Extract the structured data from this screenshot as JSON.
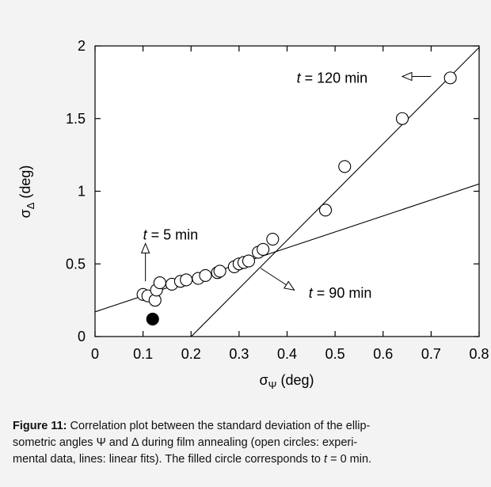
{
  "chart_data": {
    "type": "scatter",
    "xlim": [
      0,
      0.8
    ],
    "ylim": [
      0,
      2
    ],
    "xticks": [
      "0",
      "0.1",
      "0.2",
      "0.3",
      "0.4",
      "0.5",
      "0.6",
      "0.7",
      "0.8"
    ],
    "yticks": [
      "0",
      "0.5",
      "1",
      "1.5",
      "2"
    ],
    "xlabel": {
      "symbol": "σ",
      "sub": "Ψ",
      "unit": " (deg)"
    },
    "ylabel": {
      "symbol": "σ",
      "sub": "Δ",
      "unit": " (deg)"
    },
    "grid": false,
    "series": [
      {
        "marker": "open-circle",
        "points": [
          [
            0.1,
            0.29
          ],
          [
            0.11,
            0.28
          ],
          [
            0.125,
            0.25
          ],
          [
            0.128,
            0.32
          ],
          [
            0.135,
            0.37
          ],
          [
            0.16,
            0.36
          ],
          [
            0.178,
            0.38
          ],
          [
            0.19,
            0.39
          ],
          [
            0.215,
            0.4
          ],
          [
            0.23,
            0.42
          ],
          [
            0.255,
            0.44
          ],
          [
            0.26,
            0.45
          ],
          [
            0.29,
            0.48
          ],
          [
            0.3,
            0.5
          ],
          [
            0.31,
            0.51
          ],
          [
            0.32,
            0.52
          ],
          [
            0.34,
            0.58
          ],
          [
            0.35,
            0.6
          ],
          [
            0.37,
            0.67
          ],
          [
            0.48,
            0.87
          ],
          [
            0.52,
            1.17
          ],
          [
            0.64,
            1.5
          ],
          [
            0.74,
            1.78
          ]
        ]
      },
      {
        "marker": "filled-circle",
        "points": [
          [
            0.12,
            0.12
          ]
        ]
      }
    ],
    "lines": [
      {
        "from": [
          0,
          0.17
        ],
        "to": [
          0.8,
          1.05
        ]
      },
      {
        "from": [
          0.11,
          -0.3
        ],
        "to": [
          0.8,
          1.99
        ]
      }
    ],
    "annotations": [
      {
        "pre": "t",
        "text": " = 5 min",
        "at": [
          0.1,
          0.7
        ],
        "arrow_from": [
          0.105,
          0.38
        ],
        "arrow_to": [
          0.105,
          0.64
        ]
      },
      {
        "pre": "t",
        "text": " = 120 min",
        "at": [
          0.42,
          1.78
        ],
        "arrow_from": [
          0.7,
          1.79
        ],
        "arrow_to": [
          0.64,
          1.79
        ]
      },
      {
        "pre": "t",
        "text": " = 90 min",
        "at": [
          0.445,
          0.3
        ],
        "arrow_from": [
          0.345,
          0.47
        ],
        "arrow_to": [
          0.415,
          0.32
        ]
      }
    ]
  },
  "caption": {
    "label": "Figure 11:",
    "line1": " Correlation plot between the standard deviation of the ellip-",
    "line2": "sometric angles Ψ and Δ during film annealing (open circles: experi-",
    "line3": "mental data, lines: linear fits). The filled circle corresponds to ",
    "line3_italic": "t",
    "line3_end": " = 0 min."
  }
}
